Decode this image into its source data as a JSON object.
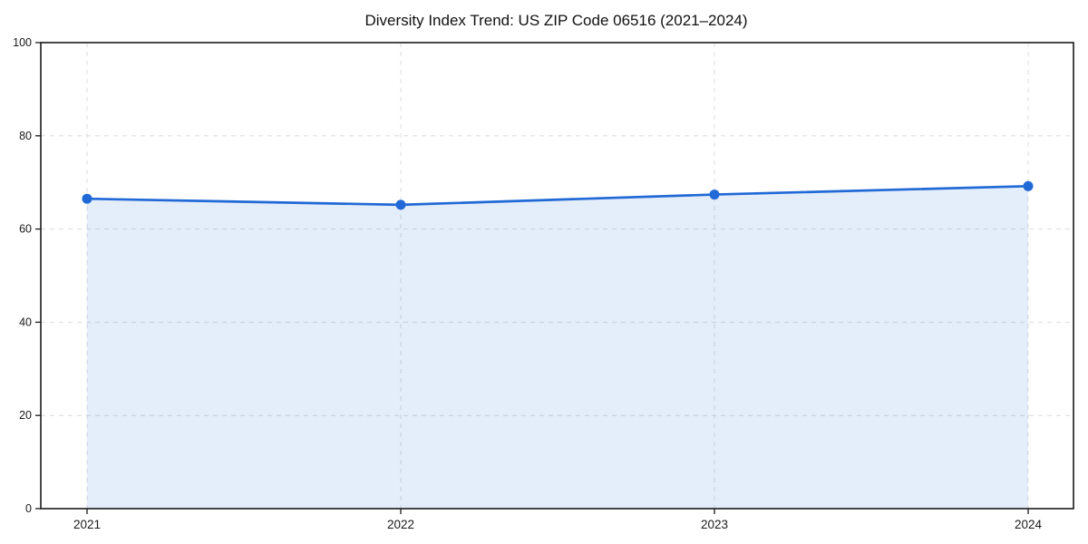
{
  "chart_data": {
    "type": "area",
    "title": "Diversity Index Trend: US ZIP Code 06516 (2021–2024)",
    "x": [
      "2021",
      "2022",
      "2023",
      "2024"
    ],
    "values": [
      66.5,
      65.2,
      67.4,
      69.2
    ],
    "xlabel": "",
    "ylabel": "",
    "ylim": [
      0,
      100
    ],
    "yticks": [
      0,
      20,
      40,
      60,
      80,
      100
    ],
    "grid": "dashed, horizontal and vertical at ticks",
    "legend": "none",
    "marker": "circle",
    "colors": {
      "line": "#2169d6",
      "marker": "#2169d6",
      "fill": "rgba(33,105,214,0.12)",
      "grid": "#dcdcdc",
      "spine": "#1a1a1a",
      "tick_text": "#1a1a1a",
      "title_text": "#111111"
    }
  }
}
